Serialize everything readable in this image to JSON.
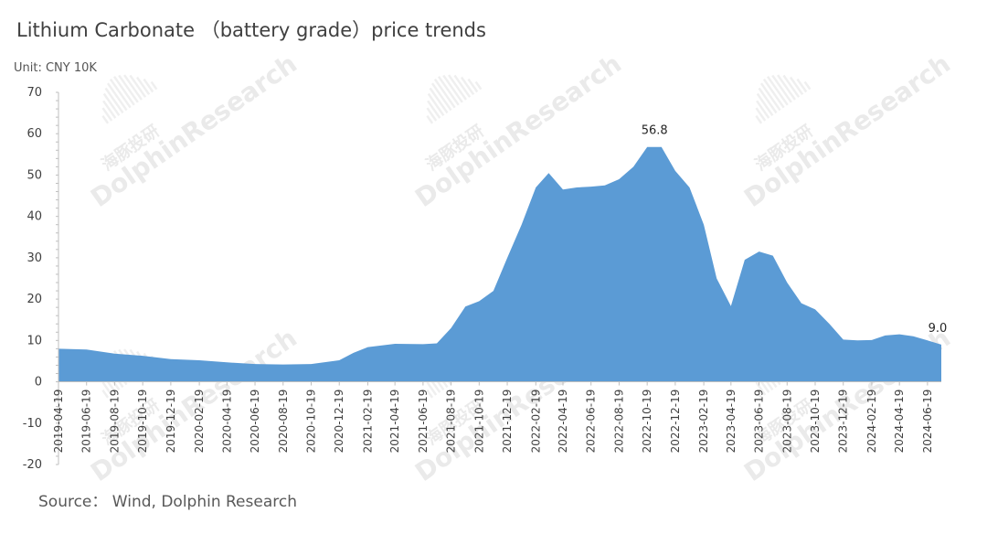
{
  "title": "Lithium Carbonate （battery grade）price trends",
  "unit": "Unit: CNY 10K",
  "source": "Source： Wind, Dolphin Research",
  "watermark": {
    "brand": "DolphinResearch",
    "cn": "海豚投研"
  },
  "colors": {
    "area": "#5b9bd5",
    "axis": "#bfbfbf",
    "text": "#404040"
  },
  "chart_data": {
    "type": "area",
    "series": [
      {
        "values": [
          [
            "2019-04-19",
            8.0
          ],
          [
            "2019-06-19",
            7.8
          ],
          [
            "2019-08-19",
            6.8
          ],
          [
            "2019-10-19",
            6.3
          ],
          [
            "2019-12-19",
            5.5
          ],
          [
            "2020-02-19",
            5.2
          ],
          [
            "2020-04-19",
            4.7
          ],
          [
            "2020-06-19",
            4.3
          ],
          [
            "2020-08-19",
            4.2
          ],
          [
            "2020-10-19",
            4.3
          ],
          [
            "2020-12-19",
            5.2
          ],
          [
            "2021-01-19",
            7.0
          ],
          [
            "2021-02-19",
            8.4
          ],
          [
            "2021-04-19",
            9.2
          ],
          [
            "2021-06-19",
            9.1
          ],
          [
            "2021-07-19",
            9.3
          ],
          [
            "2021-08-19",
            13.0
          ],
          [
            "2021-09-19",
            18.2
          ],
          [
            "2021-10-19",
            19.5
          ],
          [
            "2021-11-19",
            22.0
          ],
          [
            "2021-12-19",
            30.0
          ],
          [
            "2022-01-19",
            38.0
          ],
          [
            "2022-02-19",
            47.0
          ],
          [
            "2022-03-19",
            50.5
          ],
          [
            "2022-04-19",
            46.5
          ],
          [
            "2022-05-19",
            47.0
          ],
          [
            "2022-06-19",
            47.2
          ],
          [
            "2022-07-19",
            47.5
          ],
          [
            "2022-08-19",
            49.0
          ],
          [
            "2022-09-19",
            52.0
          ],
          [
            "2022-10-19",
            56.8
          ],
          [
            "2022-11-19",
            56.8
          ],
          [
            "2022-12-19",
            51.0
          ],
          [
            "2023-01-19",
            47.0
          ],
          [
            "2023-02-19",
            38.0
          ],
          [
            "2023-03-19",
            25.0
          ],
          [
            "2023-04-19",
            18.3
          ],
          [
            "2023-05-19",
            29.5
          ],
          [
            "2023-06-19",
            31.5
          ],
          [
            "2023-07-19",
            30.5
          ],
          [
            "2023-08-19",
            24.0
          ],
          [
            "2023-09-19",
            19.0
          ],
          [
            "2023-10-19",
            17.5
          ],
          [
            "2023-11-19",
            14.0
          ],
          [
            "2023-12-19",
            10.2
          ],
          [
            "2024-01-19",
            10.0
          ],
          [
            "2024-02-19",
            10.1
          ],
          [
            "2024-03-19",
            11.2
          ],
          [
            "2024-04-19",
            11.5
          ],
          [
            "2024-05-19",
            11.0
          ],
          [
            "2024-06-19",
            10.0
          ],
          [
            "2024-07-19",
            9.0
          ]
        ]
      }
    ],
    "x_ticks": [
      "2019-04-19",
      "2019-06-19",
      "2019-08-19",
      "2019-10-19",
      "2019-12-19",
      "2020-02-19",
      "2020-04-19",
      "2020-06-19",
      "2020-08-19",
      "2020-10-19",
      "2020-12-19",
      "2021-02-19",
      "2021-04-19",
      "2021-06-19",
      "2021-08-19",
      "2021-10-19",
      "2021-12-19",
      "2022-02-19",
      "2022-04-19",
      "2022-06-19",
      "2022-08-19",
      "2022-10-19",
      "2022-12-19",
      "2023-02-19",
      "2023-04-19",
      "2023-06-19",
      "2023-08-19",
      "2023-10-19",
      "2023-12-19",
      "2024-02-19",
      "2024-04-19",
      "2024-06-19"
    ],
    "y_ticks": [
      70,
      60,
      50,
      40,
      30,
      20,
      10,
      0,
      -10,
      -20
    ],
    "ylim": [
      -20,
      70
    ],
    "annotations": [
      {
        "x": "2022-11-04",
        "y": 56.8,
        "text": "56.8"
      },
      {
        "x": "2024-07-19",
        "y": 9.0,
        "text": "9.0"
      }
    ],
    "grid": false,
    "legend": "none"
  }
}
